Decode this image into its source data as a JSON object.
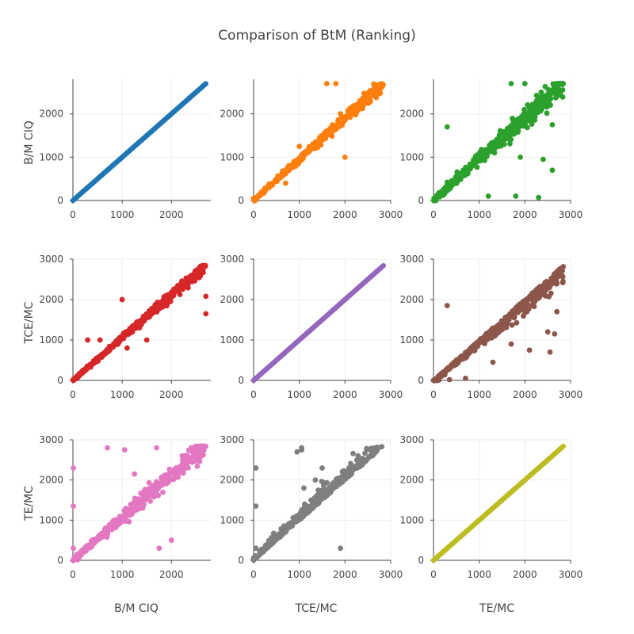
{
  "chart_data": {
    "type": "scatter",
    "title": "Comparison of BtM (Ranking)",
    "variables": [
      "B/M CIQ",
      "TCE/MC",
      "TE/MC"
    ],
    "variable_max": [
      2700,
      2840,
      2840
    ],
    "column_titles": [
      "B/M CIQ",
      "TCE/MC",
      "TE/MC"
    ],
    "row_titles": [
      "B/M CIQ",
      "TCE/MC",
      "TE/MC"
    ],
    "axes": {
      "x": [
        {
          "range": [
            0,
            2800
          ],
          "ticks": [
            0,
            1000,
            2000
          ]
        },
        {
          "range": [
            0,
            3000
          ],
          "ticks": [
            0,
            1000,
            2000,
            3000
          ]
        },
        {
          "range": [
            0,
            3000
          ],
          "ticks": [
            0,
            1000,
            2000,
            3000
          ]
        }
      ],
      "y": [
        {
          "range": [
            0,
            2800
          ],
          "ticks": [
            0,
            1000,
            2000
          ]
        },
        {
          "range": [
            0,
            3000
          ],
          "ticks": [
            0,
            1000,
            2000,
            3000
          ]
        },
        {
          "range": [
            0,
            3000
          ],
          "ticks": [
            0,
            1000,
            2000,
            3000
          ]
        }
      ]
    },
    "colors": [
      [
        "#1f77b4",
        "#ff7f0e",
        "#2ca02c"
      ],
      [
        "#d62728",
        "#9467bd",
        "#8c564b"
      ],
      [
        "#e377c2",
        "#7f7f7f",
        "#bcbd22"
      ]
    ],
    "panels": [
      {
        "row": 0,
        "col": 0,
        "pattern": "identity",
        "outliers": []
      },
      {
        "row": 0,
        "col": 1,
        "pattern": "tight",
        "outliers": [
          [
            1600,
            2700
          ],
          [
            1800,
            2700
          ],
          [
            2000,
            1000
          ],
          [
            1000,
            1250
          ],
          [
            700,
            400
          ],
          [
            1900,
            2000
          ]
        ]
      },
      {
        "row": 0,
        "col": 2,
        "pattern": "wide",
        "outliers": [
          [
            300,
            1700
          ],
          [
            2600,
            1750
          ],
          [
            1900,
            1000
          ],
          [
            2600,
            700
          ],
          [
            2400,
            950
          ],
          [
            1700,
            2700
          ],
          [
            2000,
            2700
          ],
          [
            2300,
            70
          ],
          [
            1800,
            100
          ],
          [
            1200,
            100
          ]
        ]
      },
      {
        "row": 1,
        "col": 0,
        "pattern": "tight",
        "outliers": [
          [
            1000,
            2000
          ],
          [
            2700,
            1650
          ],
          [
            2700,
            2080
          ],
          [
            300,
            1000
          ],
          [
            550,
            1000
          ],
          [
            1500,
            1000
          ],
          [
            1350,
            1300
          ],
          [
            1100,
            800
          ]
        ]
      },
      {
        "row": 1,
        "col": 1,
        "pattern": "identity",
        "outliers": []
      },
      {
        "row": 1,
        "col": 2,
        "pattern": "lower",
        "outliers": [
          [
            300,
            1850
          ],
          [
            2700,
            1700
          ],
          [
            2550,
            700
          ],
          [
            2650,
            1150
          ],
          [
            2500,
            1200
          ],
          [
            2100,
            750
          ],
          [
            1700,
            900
          ],
          [
            1300,
            450
          ],
          [
            700,
            50
          ],
          [
            350,
            20
          ]
        ]
      },
      {
        "row": 2,
        "col": 0,
        "pattern": "wide",
        "outliers": [
          [
            10,
            2300
          ],
          [
            10,
            1350
          ],
          [
            10,
            300
          ],
          [
            700,
            2800
          ],
          [
            1700,
            2800
          ],
          [
            1750,
            300
          ],
          [
            2000,
            500
          ],
          [
            1050,
            2750
          ],
          [
            1250,
            2150
          ],
          [
            1600,
            1650
          ]
        ]
      },
      {
        "row": 2,
        "col": 1,
        "pattern": "upper",
        "outliers": [
          [
            50,
            2300
          ],
          [
            50,
            1350
          ],
          [
            50,
            300
          ],
          [
            1050,
            2800
          ],
          [
            1050,
            2750
          ],
          [
            950,
            2700
          ],
          [
            1900,
            300
          ],
          [
            1500,
            2300
          ],
          [
            1350,
            2000
          ],
          [
            1100,
            1800
          ]
        ]
      },
      {
        "row": 2,
        "col": 2,
        "pattern": "identity",
        "outliers": []
      }
    ]
  }
}
